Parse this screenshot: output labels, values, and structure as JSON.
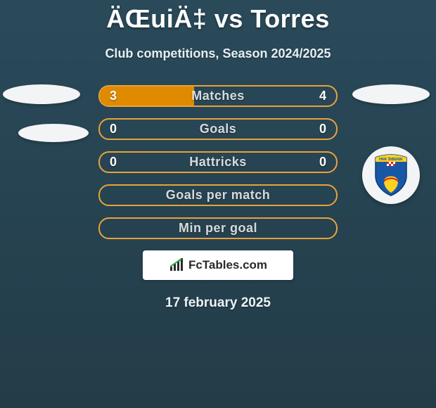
{
  "title": "ÄŒuiÄ‡ vs Torres",
  "subtitle": "Club competitions, Season 2024/2025",
  "date": "17 february 2025",
  "attribution": "FcTables.com",
  "colors": {
    "left_accent": "#e08a00",
    "right_accent": "#2b7a3f",
    "bar_border": "#e9a23a",
    "bar_bg": "transparent",
    "page_bg_top": "#2a4a5a",
    "page_bg_bottom": "#233c48",
    "text": "#ffffff"
  },
  "badge": {
    "top_text": "HNK ŠIBENIK",
    "yellow": "#ffd21f",
    "blue": "#1757a6",
    "red": "#d8232a",
    "white": "#ffffff"
  },
  "rows": [
    {
      "label": "Matches",
      "left": "3",
      "right": "4",
      "left_fill_pct": 40,
      "right_fill_pct": 0
    },
    {
      "label": "Goals",
      "left": "0",
      "right": "0",
      "left_fill_pct": 0,
      "right_fill_pct": 0
    },
    {
      "label": "Hattricks",
      "left": "0",
      "right": "0",
      "left_fill_pct": 0,
      "right_fill_pct": 0
    },
    {
      "label": "Goals per match",
      "left": "",
      "right": "",
      "left_fill_pct": 0,
      "right_fill_pct": 0
    },
    {
      "label": "Min per goal",
      "left": "",
      "right": "",
      "left_fill_pct": 0,
      "right_fill_pct": 0
    }
  ],
  "typography": {
    "title_fontsize": 36,
    "subtitle_fontsize": 18,
    "bar_label_fontsize": 18,
    "value_fontsize": 18,
    "date_fontsize": 19
  }
}
